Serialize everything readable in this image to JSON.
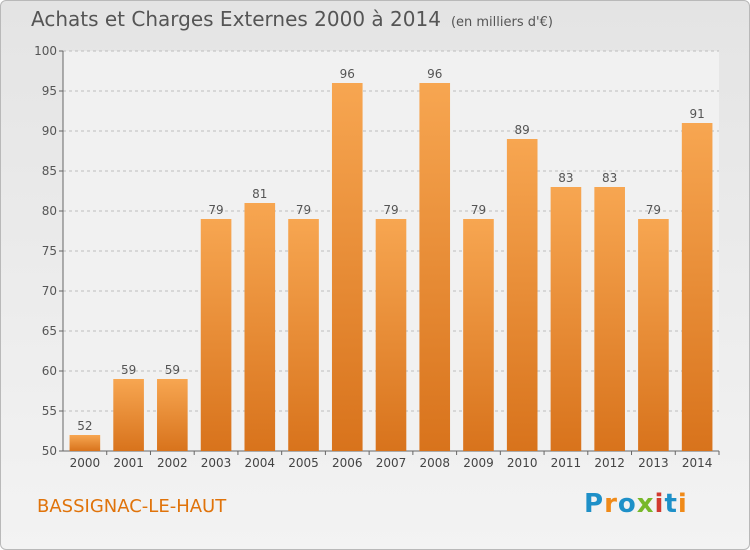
{
  "header": {
    "title": "Achats et Charges Externes 2000 à 2014",
    "unit": "(en milliers d'€)"
  },
  "footer": {
    "place": "BASSIGNAC-LE-HAUT",
    "logo": "Proxiti"
  },
  "colors": {
    "bar_top": "#f7a651",
    "bar_bottom": "#d8731c",
    "place_text": "#e0730a",
    "logo_letters": [
      "#1e90c8",
      "#f08a18",
      "#1e90c8",
      "#78b82a",
      "#d23a30",
      "#1e90c8",
      "#f08a18"
    ]
  },
  "chart_data": {
    "type": "bar",
    "categories": [
      "2000",
      "2001",
      "2002",
      "2003",
      "2004",
      "2005",
      "2006",
      "2007",
      "2008",
      "2009",
      "2010",
      "2011",
      "2012",
      "2013",
      "2014"
    ],
    "values": [
      52,
      59,
      59,
      79,
      81,
      79,
      96,
      79,
      96,
      79,
      89,
      83,
      83,
      79,
      91
    ],
    "ylim": [
      50,
      100
    ],
    "yticks": [
      50,
      55,
      60,
      65,
      70,
      75,
      80,
      85,
      90,
      95,
      100
    ],
    "grid": "horizontal-dashed",
    "data_labels": true,
    "legend": "none"
  }
}
